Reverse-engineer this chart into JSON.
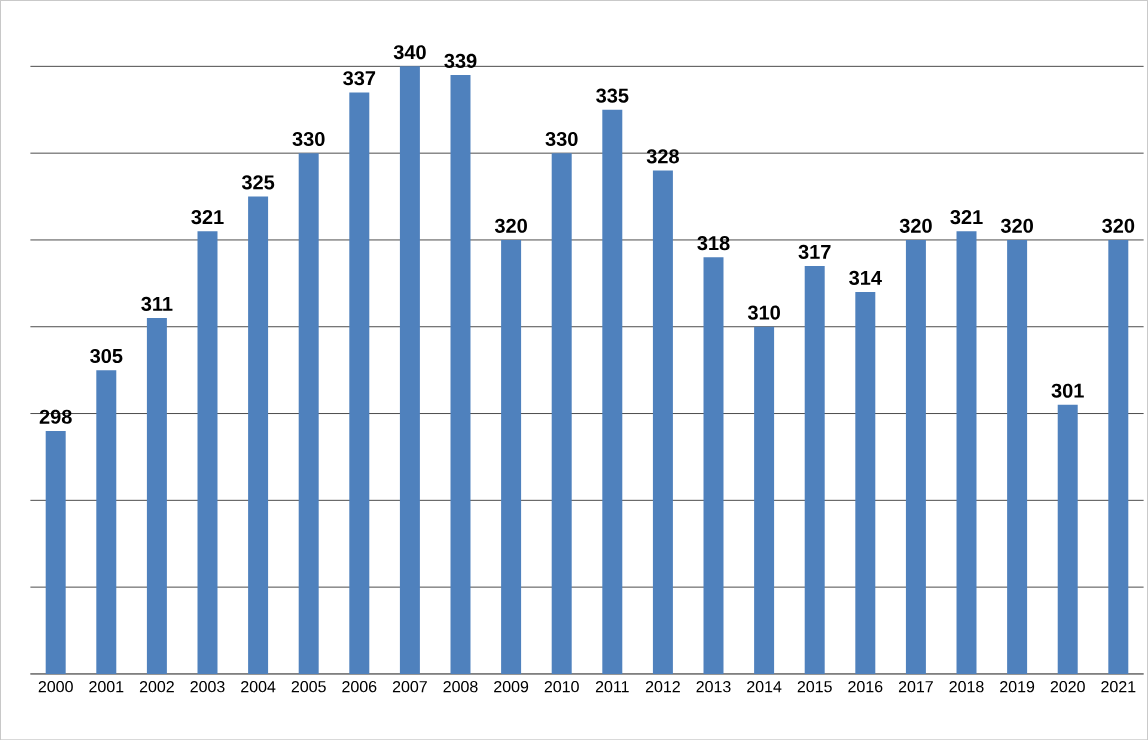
{
  "chart_data": {
    "type": "bar",
    "categories": [
      "2000",
      "2001",
      "2002",
      "2003",
      "2004",
      "2005",
      "2006",
      "2007",
      "2008",
      "2009",
      "2010",
      "2011",
      "2012",
      "2013",
      "2014",
      "2015",
      "2016",
      "2017",
      "2018",
      "2019",
      "2020",
      "2021"
    ],
    "values": [
      298,
      305,
      311,
      321,
      325,
      330,
      337,
      340,
      339,
      320,
      330,
      335,
      328,
      318,
      310,
      317,
      314,
      320,
      321,
      320,
      301,
      320
    ],
    "color": "#4f81bd",
    "data_labels": true,
    "grid": "y",
    "tick_labels": "x",
    "ylim": [
      270,
      340
    ]
  }
}
